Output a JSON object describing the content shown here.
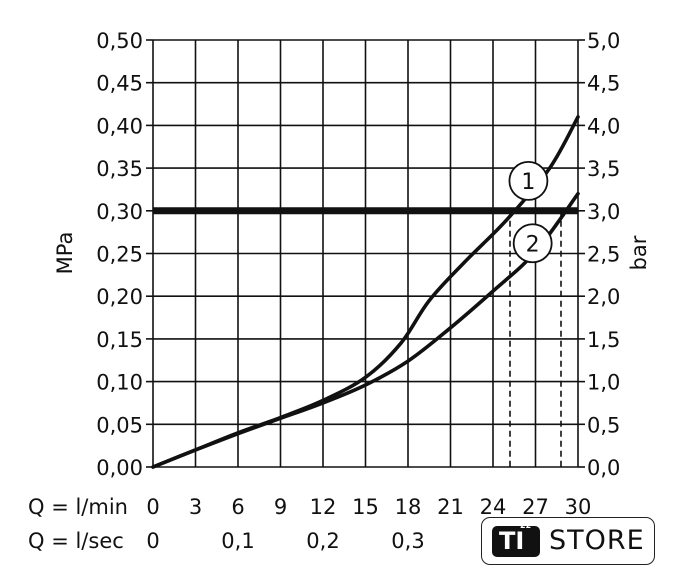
{
  "chart_data": {
    "type": "line",
    "title": "",
    "y_left": {
      "label": "MPa",
      "min": 0,
      "max": 0.5,
      "ticks": [
        "0,00",
        "0,05",
        "0,10",
        "0,15",
        "0,20",
        "0,25",
        "0,30",
        "0,35",
        "0,40",
        "0,45",
        "0,50"
      ]
    },
    "y_right": {
      "label": "bar",
      "min": 0,
      "max": 5.0,
      "ticks": [
        "0,0",
        "0,5",
        "1,0",
        "1,5",
        "2,0",
        "2,5",
        "3,0",
        "3,5",
        "4,0",
        "4,5",
        "5,0"
      ]
    },
    "x_rows": [
      {
        "label": "Q = l/min",
        "ticks": [
          "0",
          "3",
          "6",
          "9",
          "12",
          "15",
          "18",
          "21",
          "24",
          "27",
          "30"
        ],
        "values": [
          0,
          3,
          6,
          9,
          12,
          15,
          18,
          21,
          24,
          27,
          30
        ]
      },
      {
        "label": "Q = l/sec",
        "ticks": [
          "0",
          "0,1",
          "0,2",
          "0,3"
        ],
        "values": [
          0,
          6,
          12,
          18
        ]
      }
    ],
    "xlim": [
      0,
      30
    ],
    "ylim": [
      0,
      0.5
    ],
    "grid": true,
    "reference_line": {
      "y": 0.3
    },
    "series": [
      {
        "name": "1",
        "x": [
          0,
          3,
          6,
          9,
          12,
          15,
          17.5,
          19.5,
          22,
          25,
          28,
          30
        ],
        "y": [
          0,
          0.02,
          0.04,
          0.058,
          0.078,
          0.105,
          0.145,
          0.195,
          0.24,
          0.29,
          0.35,
          0.41
        ]
      },
      {
        "name": "2",
        "x": [
          0,
          3,
          6,
          9,
          12,
          15,
          18,
          21,
          24,
          27,
          30
        ],
        "y": [
          0,
          0.02,
          0.039,
          0.057,
          0.075,
          0.096,
          0.124,
          0.163,
          0.206,
          0.252,
          0.32
        ]
      }
    ],
    "intersections_l_min": [
      25.2,
      28.8
    ]
  },
  "logo": {
    "ti": "TI",
    "num": "22",
    "store": "STORE"
  }
}
